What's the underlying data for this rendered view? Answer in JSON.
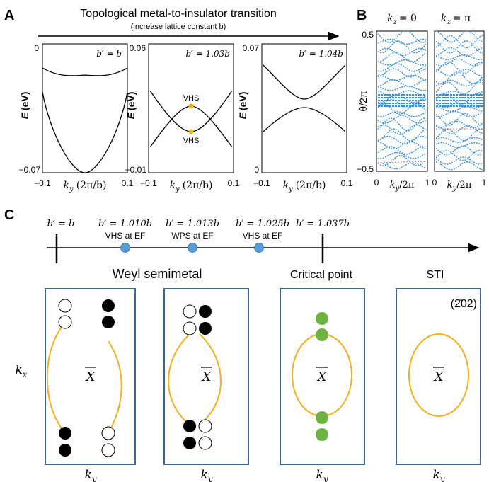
{
  "panel_a": {
    "letter": "A",
    "title": "Topological metal-to-insulator transition",
    "subtitle": "(increase lattice constant b)",
    "x_tick_min": "−0.1",
    "x_tick_max": "0.1",
    "x_label_ky": "k",
    "x_label_sub": "y",
    "x_label_unit": "(2π/b)",
    "y_label_E": "E",
    "y_label_unit": "(eV)",
    "subplots": [
      {
        "label": "b′ = b",
        "y_top": "0",
        "y_bottom": "−0.07"
      },
      {
        "label": "b′ = 1.03b",
        "y_top": "0.06",
        "y_bottom": "−0.01",
        "vhs_top": "VHS",
        "vhs_bottom": "VHS"
      },
      {
        "label": "b′ = 1.04b",
        "y_top": "0.07",
        "y_bottom": "0"
      }
    ]
  },
  "panel_b": {
    "letter": "B",
    "title_left_k": "k",
    "title_left_sub": "z",
    "title_left_val": "= 0",
    "title_right_k": "k",
    "title_right_sub": "z",
    "title_right_val": "= π",
    "y_tick_top": "0.5",
    "y_tick_bottom": "−0.5",
    "y_label": "θ/2π",
    "x_tick_left": "0",
    "x_tick_right": "1",
    "x_label_k": "k",
    "x_label_sub": "y",
    "x_label_rest": "/2π",
    "wcc_color": "#3b8fd6"
  },
  "panel_c": {
    "letter": "C",
    "phase_labels": [
      {
        "top": "b′ = b",
        "bottom": ""
      },
      {
        "top": "b′ = 1.010b",
        "bottom": "VHS at EF"
      },
      {
        "top": "b′ = 1.013b",
        "bottom": "WPS at EF"
      },
      {
        "top": "b′ = 1.025b",
        "bottom": "VHS at EF"
      },
      {
        "top": "b′ = 1.037b",
        "bottom": ""
      }
    ],
    "heading_weyl": "Weyl semimetal",
    "heading_critical": "Critical point",
    "heading_sti": "STI",
    "surface_label": "(2̄02)",
    "xbar": "X",
    "kx": "k",
    "kx_sub": "x",
    "ky": "k",
    "ky_sub": "y",
    "colors": {
      "box": "#3c6690",
      "arc": "#f2b01e",
      "green": "#6cb33f",
      "dot_marker": "#5b9bd5",
      "vhs": "#f5b800"
    }
  }
}
